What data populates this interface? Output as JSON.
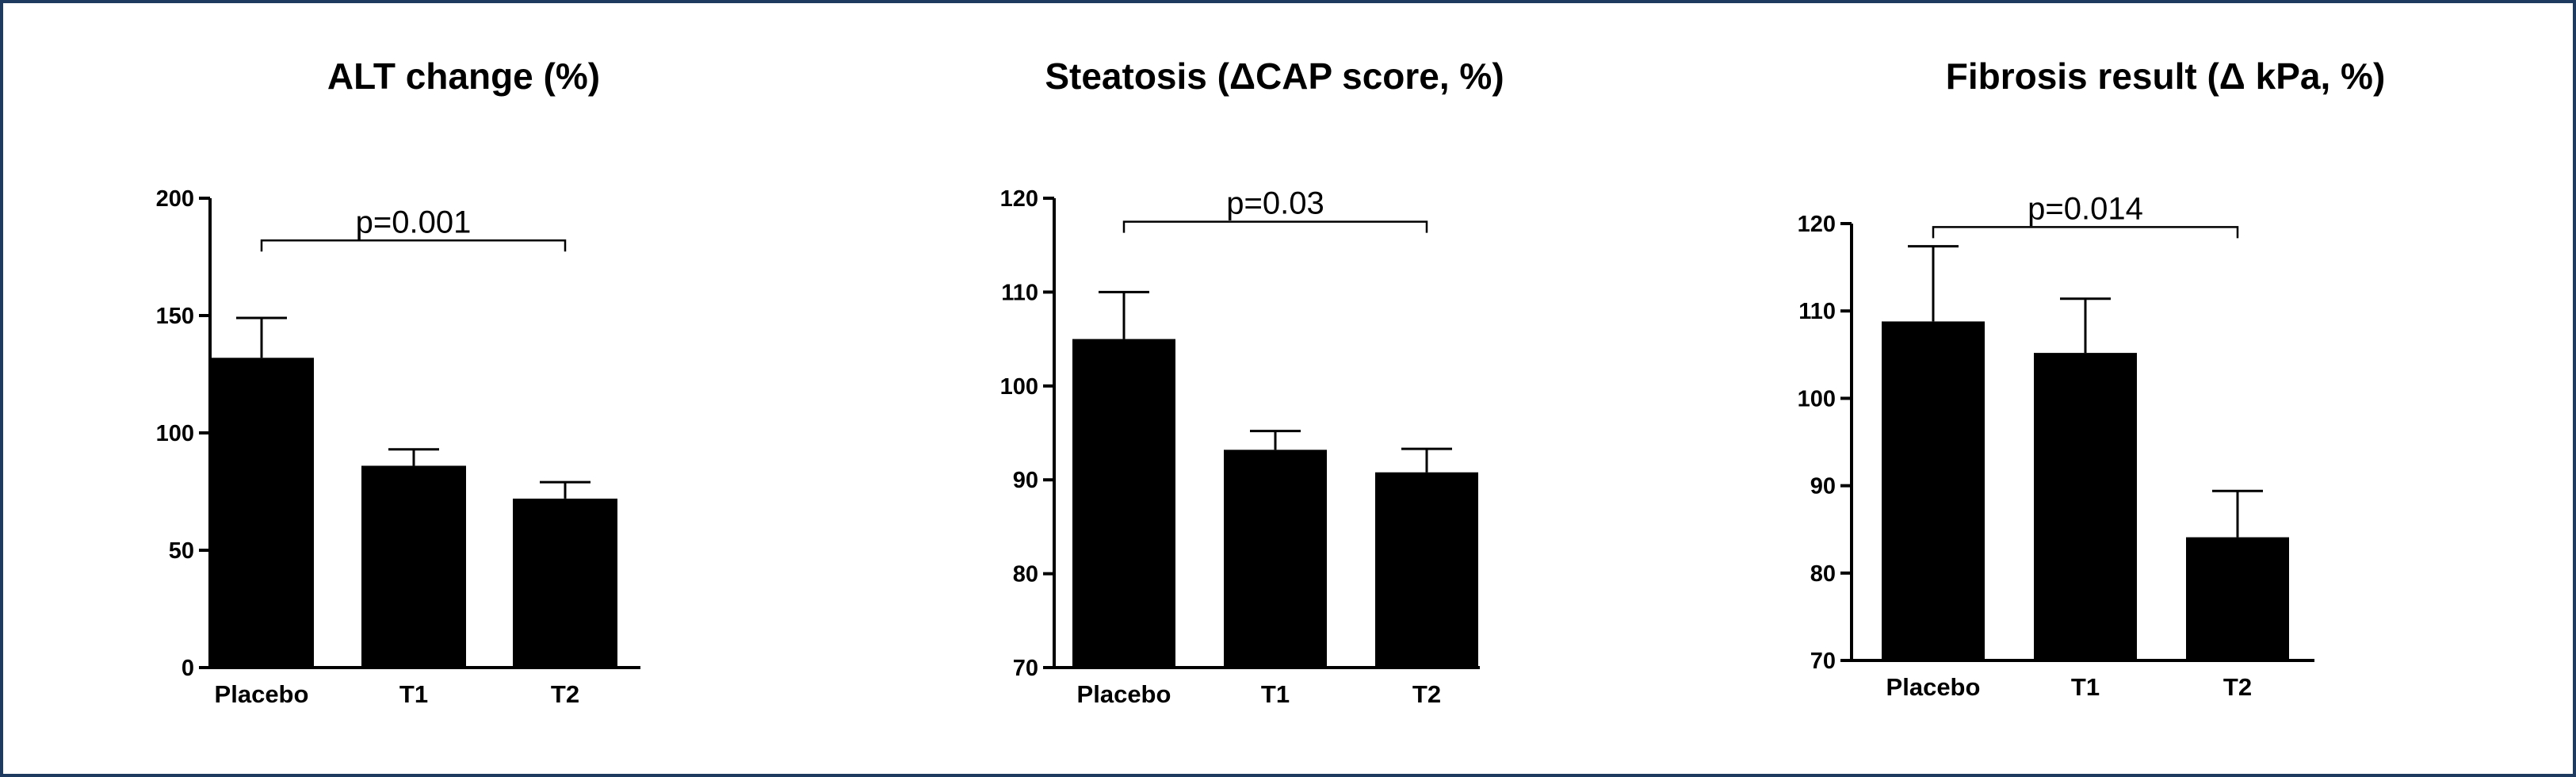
{
  "chart_data": [
    {
      "type": "bar",
      "title": "ALT change (%)",
      "categories": [
        "Placebo",
        "T1",
        "T2"
      ],
      "values": [
        132,
        86,
        72
      ],
      "error": [
        17,
        7,
        7
      ],
      "ylim": [
        0,
        200
      ],
      "yticks": [
        0,
        50,
        100,
        150,
        200
      ],
      "comparison": {
        "from": "Placebo",
        "to": "T2",
        "label": "p=0.001",
        "y": 182
      },
      "grid": false,
      "colors": {
        "bar": "#000000"
      }
    },
    {
      "type": "bar",
      "title": "Steatosis (ΔCAP score, %)",
      "categories": [
        "Placebo",
        "T1",
        "T2"
      ],
      "values": [
        105,
        93.2,
        90.8
      ],
      "error": [
        5,
        2,
        2.5
      ],
      "ylim": [
        70,
        120
      ],
      "yticks": [
        70,
        80,
        90,
        100,
        110,
        120
      ],
      "comparison": {
        "from": "Placebo",
        "to": "T2",
        "label": "p=0.03",
        "y": 117.5
      },
      "grid": false,
      "colors": {
        "bar": "#000000"
      }
    },
    {
      "type": "bar",
      "title": "Fibrosis result (Δ kPa, %)",
      "categories": [
        "Placebo",
        "T1",
        "T2"
      ],
      "values": [
        108.8,
        105.2,
        84.1
      ],
      "error": [
        8.6,
        6.2,
        5.3
      ],
      "ylim": [
        70,
        120
      ],
      "yticks": [
        70,
        80,
        90,
        100,
        110,
        120
      ],
      "comparison": {
        "from": "Placebo",
        "to": "T2",
        "label": "p=0.014",
        "y": 119.6
      },
      "grid": false,
      "colors": {
        "bar": "#000000"
      }
    }
  ]
}
